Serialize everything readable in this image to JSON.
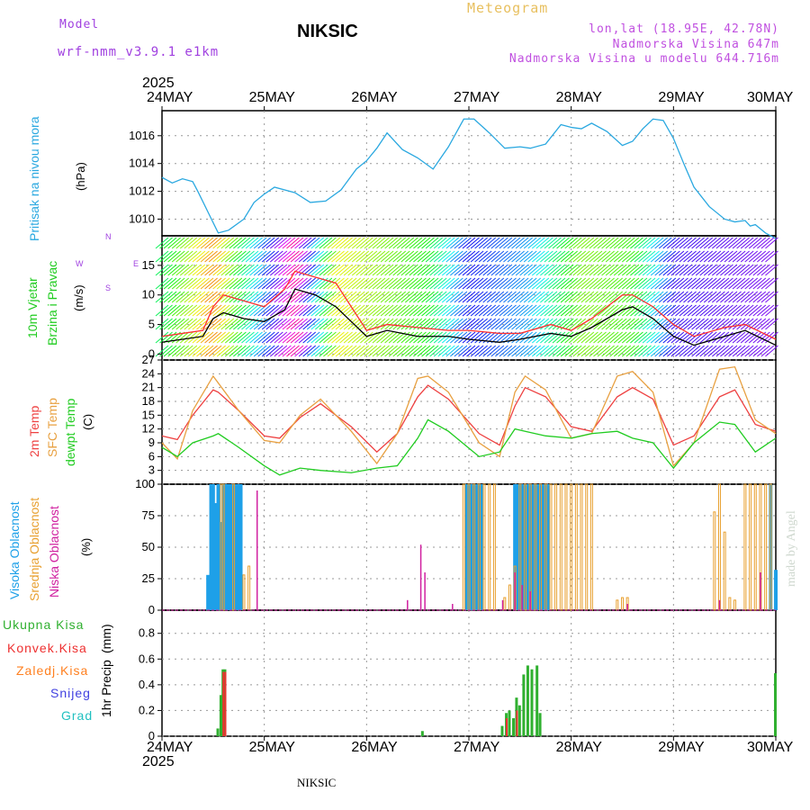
{
  "header": {
    "model_label": "Model",
    "model_name": "wrf-nmm_v3.9.1 e1km",
    "station": "NIKSIC",
    "title": "Meteogram",
    "lonlat": "lon,lat (18.95E, 42.78N)",
    "altitude": "Nadmorska Visina 647m",
    "model_altitude": "Nadmorska Visina u modelu 644.716m"
  },
  "time_axis": {
    "year": "2025",
    "days": [
      "24MAY",
      "25MAY",
      "26MAY",
      "27MAY",
      "28MAY",
      "29MAY",
      "30MAY"
    ]
  },
  "footer": {
    "station": "NIKSIC",
    "credit": "made by Angel"
  },
  "colors": {
    "pressure": "#2aa8e0",
    "wind_speed": "#000000",
    "wind_gust": "#ff3030",
    "t2m": "#ee4040",
    "sfc": "#e8a040",
    "dewpt": "#20cc20",
    "high_cloud": "#1ea0e8",
    "mid_cloud": "#e8a030",
    "low_cloud": "#d020a0",
    "total_precip": "#30b030",
    "conv_precip": "#ee3030",
    "frozen_precip": "#ff8020",
    "snow": "#4040e0",
    "hail": "#20c0c0",
    "model_text": "#a040e0",
    "header_text": "#c050e0",
    "meteogram_text": "#e8c060"
  },
  "chart_data": [
    {
      "type": "line",
      "ylabel": "Pritisak na nivou mora",
      "unit": "(hPa)",
      "yticks": [
        1010,
        1012,
        1014,
        1016
      ],
      "ylim": [
        1008.8,
        1017.8
      ],
      "series": [
        {
          "name": "Pritisak na nivou mora",
          "x": [
            0,
            0.1,
            0.2,
            0.3,
            0.35,
            0.45,
            0.55,
            0.65,
            0.8,
            0.9,
            1.0,
            1.1,
            1.3,
            1.45,
            1.6,
            1.75,
            1.9,
            2.0,
            2.1,
            2.2,
            2.35,
            2.5,
            2.65,
            2.8,
            2.95,
            3.05,
            3.2,
            3.35,
            3.5,
            3.6,
            3.75,
            3.9,
            4.0,
            4.1,
            4.2,
            4.35,
            4.5,
            4.6,
            4.7,
            4.8,
            4.9,
            5.0,
            5.1,
            5.2,
            5.35,
            5.5,
            5.6,
            5.7,
            5.75,
            5.8,
            5.9,
            6.0
          ],
          "values": [
            1013.0,
            1012.6,
            1012.9,
            1012.7,
            1012.0,
            1010.5,
            1009.0,
            1009.2,
            1010.0,
            1011.2,
            1011.8,
            1012.3,
            1011.9,
            1011.2,
            1011.3,
            1012.1,
            1013.6,
            1014.2,
            1015.1,
            1016.2,
            1015.0,
            1014.4,
            1013.6,
            1015.2,
            1017.2,
            1017.2,
            1016.2,
            1015.1,
            1015.2,
            1015.1,
            1015.4,
            1016.8,
            1016.6,
            1016.5,
            1016.9,
            1016.3,
            1015.3,
            1015.6,
            1016.5,
            1017.2,
            1017.1,
            1015.8,
            1014.0,
            1012.3,
            1010.9,
            1010.0,
            1009.8,
            1009.9,
            1009.5,
            1009.6,
            1009.0,
            1008.6
          ]
        }
      ]
    },
    {
      "type": "line",
      "ylabel": "10m Vjetar Brzina i Pravac",
      "unit": "(m/s)",
      "compass": {
        "n": "N",
        "s": "S",
        "e": "E",
        "w": "W"
      },
      "yticks": [
        0,
        5,
        10,
        15
      ],
      "ylim": [
        -1,
        20
      ],
      "series": [
        {
          "name": "10m Vjetar",
          "x": [
            0,
            0.2,
            0.4,
            0.5,
            0.6,
            0.8,
            1.0,
            1.2,
            1.3,
            1.5,
            1.7,
            2.0,
            2.2,
            2.5,
            2.8,
            3.0,
            3.3,
            3.5,
            3.8,
            4.0,
            4.2,
            4.5,
            4.6,
            4.8,
            5.0,
            5.2,
            5.5,
            5.7,
            6.0
          ],
          "values": [
            2,
            2.5,
            3,
            6,
            7,
            6,
            5.5,
            7.5,
            11,
            10,
            8,
            3,
            4,
            3,
            3,
            2.5,
            2,
            2.5,
            3.5,
            3,
            4.5,
            7.5,
            8,
            6,
            3,
            1.5,
            3,
            4,
            1.5
          ]
        },
        {
          "name": "Udar",
          "x": [
            0,
            0.2,
            0.4,
            0.5,
            0.6,
            0.8,
            1.0,
            1.2,
            1.3,
            1.5,
            1.7,
            2.0,
            2.2,
            2.5,
            2.8,
            3.0,
            3.3,
            3.5,
            3.8,
            4.0,
            4.2,
            4.5,
            4.6,
            4.8,
            5.0,
            5.2,
            5.5,
            5.7,
            6.0
          ],
          "values": [
            3,
            3.5,
            4,
            8,
            10,
            9,
            8,
            11,
            14,
            13,
            12,
            4,
            5,
            4.5,
            4,
            4,
            3.5,
            3.5,
            5,
            4,
            6,
            10,
            10,
            8,
            5,
            3,
            4.5,
            5,
            2.5
          ]
        }
      ]
    },
    {
      "type": "line",
      "ylabel": "2m Temp / SFC Temp / dewpt Temp",
      "unit": "(C)",
      "yticks": [
        0,
        3,
        6,
        9,
        12,
        15,
        18,
        21,
        24,
        27
      ],
      "ylim": [
        0,
        27
      ],
      "series": [
        {
          "name": "2m Temp",
          "x": [
            0,
            0.15,
            0.3,
            0.5,
            0.55,
            0.75,
            1.0,
            1.15,
            1.35,
            1.55,
            1.85,
            2.1,
            2.3,
            2.5,
            2.6,
            2.8,
            3.1,
            3.3,
            3.45,
            3.55,
            3.75,
            4.0,
            4.2,
            4.45,
            4.6,
            4.8,
            5.0,
            5.2,
            5.45,
            5.6,
            5.8,
            6.0
          ],
          "values": [
            10.5,
            9.7,
            15,
            20.5,
            20,
            16,
            10.5,
            10,
            14.5,
            17.5,
            12.5,
            7,
            11,
            19,
            21.5,
            18.5,
            11,
            8.5,
            17,
            21,
            19,
            12.5,
            11.5,
            19,
            21,
            18.5,
            8.5,
            10.5,
            19,
            20.5,
            13,
            11.5
          ]
        },
        {
          "name": "SFC Temp",
          "x": [
            0,
            0.15,
            0.3,
            0.5,
            0.55,
            0.75,
            1.0,
            1.15,
            1.35,
            1.55,
            1.85,
            2.1,
            2.3,
            2.5,
            2.6,
            2.8,
            3.1,
            3.3,
            3.45,
            3.55,
            3.75,
            4.0,
            4.2,
            4.45,
            4.6,
            4.8,
            5.0,
            5.2,
            5.45,
            5.6,
            5.8,
            6.0
          ],
          "values": [
            9,
            5.5,
            16,
            23.5,
            22,
            16,
            9.5,
            9,
            15,
            18.5,
            11.5,
            4.5,
            11,
            23,
            23.5,
            20,
            9,
            6,
            20,
            23.5,
            20.5,
            10,
            11,
            23.5,
            24.5,
            20,
            4,
            9,
            25,
            25.5,
            14,
            11
          ]
        },
        {
          "name": "dewpt Temp",
          "x": [
            0,
            0.15,
            0.3,
            0.5,
            0.55,
            0.75,
            1.0,
            1.15,
            1.35,
            1.55,
            1.85,
            2.1,
            2.3,
            2.5,
            2.6,
            2.8,
            3.1,
            3.3,
            3.45,
            3.55,
            3.75,
            4.0,
            4.2,
            4.45,
            4.6,
            4.8,
            5.0,
            5.2,
            5.45,
            5.6,
            5.8,
            6.0
          ],
          "values": [
            8,
            6,
            9,
            10.5,
            11,
            8,
            4,
            2,
            3.5,
            3,
            2.5,
            3.5,
            4,
            10,
            14,
            11.5,
            6,
            7,
            12,
            11.5,
            10.5,
            10,
            11,
            11.5,
            10,
            9,
            3.5,
            9,
            13.5,
            13,
            7,
            10
          ]
        }
      ]
    },
    {
      "type": "bar",
      "ylabel": "Visoka Oblacnost / Srednja Oblacnost / Niska Oblacnost",
      "unit": "(%)",
      "yticks": [
        0,
        25,
        50,
        75,
        100
      ],
      "ylim": [
        0,
        100
      ],
      "series": [
        {
          "name": "Visoka Oblacnost",
          "x": [
            0.45,
            0.48,
            0.5,
            0.52,
            0.55,
            0.57,
            0.6,
            0.62,
            0.65,
            0.68,
            0.7,
            0.72,
            0.75,
            0.77,
            2.98,
            3.0,
            3.02,
            3.05,
            3.07,
            3.1,
            3.12,
            3.45,
            3.47,
            3.5,
            3.52,
            3.55,
            3.57,
            3.6,
            3.62,
            3.65,
            3.67,
            3.7,
            3.72,
            3.75,
            3.77,
            5.95,
            6.0
          ],
          "values": [
            28,
            100,
            100,
            85,
            100,
            70,
            100,
            100,
            100,
            100,
            100,
            100,
            100,
            100,
            100,
            100,
            100,
            100,
            100,
            100,
            100,
            100,
            100,
            100,
            100,
            100,
            100,
            100,
            100,
            100,
            100,
            100,
            100,
            100,
            100,
            100,
            32
          ]
        },
        {
          "name": "Srednja Oblacnost",
          "x": [
            0.58,
            0.6,
            0.7,
            0.8,
            0.85,
            2.95,
            3.0,
            3.05,
            3.1,
            3.15,
            3.2,
            3.25,
            3.35,
            3.4,
            3.45,
            3.5,
            3.55,
            3.6,
            3.65,
            3.7,
            3.75,
            3.8,
            3.85,
            3.9,
            3.95,
            4.0,
            4.05,
            4.1,
            4.15,
            4.2,
            4.45,
            4.5,
            4.55,
            5.4,
            5.45,
            5.5,
            5.55,
            5.6,
            5.7,
            5.75,
            5.8,
            5.85,
            5.9,
            5.95
          ],
          "values": [
            100,
            100,
            100,
            28,
            35,
            100,
            100,
            100,
            100,
            100,
            100,
            100,
            10,
            20,
            35,
            100,
            100,
            100,
            100,
            100,
            100,
            100,
            100,
            100,
            100,
            100,
            100,
            100,
            100,
            100,
            8,
            10,
            10,
            78,
            100,
            62,
            10,
            8,
            100,
            100,
            100,
            100,
            100,
            100
          ]
        },
        {
          "name": "Niska Oblacnost",
          "x": [
            0.93,
            2.4,
            2.53,
            2.57,
            2.84,
            3.33,
            3.45,
            3.52,
            3.6,
            4.55,
            5.45,
            5.85
          ],
          "values": [
            95,
            8,
            52,
            30,
            5,
            8,
            30,
            20,
            15,
            5,
            8,
            30
          ]
        }
      ]
    },
    {
      "type": "bar",
      "ylabel": "1hr Precip",
      "unit": "(mm)",
      "yticks": [
        0,
        0.2,
        0.4,
        0.6,
        0.8
      ],
      "ylim": [
        0,
        0.98
      ],
      "legend": [
        "Ukupna Kisa",
        "Konvek.Kisa",
        "Zaledj.Kisa",
        "Snijeg",
        "Grad"
      ],
      "series": [
        {
          "name": "Ukupna Kisa",
          "x": [
            0.55,
            0.58,
            0.6,
            0.62,
            2.55,
            3.33,
            3.37,
            3.4,
            3.44,
            3.47,
            3.5,
            3.54,
            3.58,
            3.62,
            3.67,
            3.7,
            6.0
          ],
          "values": [
            0.06,
            0.32,
            0.52,
            0.52,
            0.04,
            0.08,
            0.18,
            0.2,
            0.14,
            0.3,
            0.24,
            0.48,
            0.55,
            0.52,
            0.55,
            0.18,
            0.49
          ]
        },
        {
          "name": "Konvek.Kisa",
          "x": [
            0.6,
            0.62,
            3.37,
            3.47
          ],
          "values": [
            0.5,
            0.5,
            0.14,
            0.2
          ]
        }
      ]
    }
  ]
}
